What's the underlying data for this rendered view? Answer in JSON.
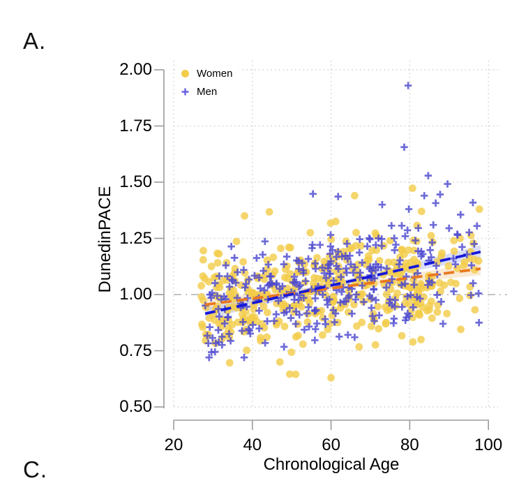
{
  "panel_labels": {
    "top": "A.",
    "bottom": "C."
  },
  "chart_data": {
    "type": "scatter",
    "title": "",
    "xlabel": "Chronological Age",
    "ylabel": "DunedinPACE",
    "xlim": [
      20,
      100
    ],
    "ylim": [
      0.5,
      2.0
    ],
    "x_ticks": [
      20,
      40,
      60,
      80,
      100
    ],
    "x_tick_labels": [
      "20",
      "40",
      "60",
      "80",
      "100"
    ],
    "y_ticks": [
      2.0,
      1.75,
      1.5,
      1.25,
      1.0,
      0.75,
      0.5
    ],
    "y_tick_labels": [
      "2.00",
      "1.75",
      "1.50",
      "1.25",
      "1.00",
      "0.75",
      "0.50"
    ],
    "grid": "dotted",
    "grid_color": "#d0d0d0",
    "axis_color": "#9b9b9b",
    "reference_line": {
      "y": 1.0,
      "style": "dash-dot",
      "color": "#c4c4c4"
    },
    "legend": {
      "position": "top-left-inside",
      "entries": [
        {
          "label": "Women",
          "marker": "circle",
          "color": "#F3CC49"
        },
        {
          "label": "Men",
          "marker": "plus",
          "color": "#6660DE"
        }
      ]
    },
    "series": [
      {
        "name": "Women",
        "marker": "circle",
        "color": "#F3CC49",
        "opacity": 0.8,
        "approx_n": 400,
        "trend": {
          "style": "dashed",
          "color": "#E8791F",
          "x": [
            28,
            98
          ],
          "y": [
            0.955,
            1.115
          ],
          "band_color": "#F6DCB6",
          "band_opacity": 0.6
        },
        "distribution": {
          "seed": 11,
          "n": 400,
          "age_min": 27,
          "age_bulk_max": 86,
          "age_max": 97,
          "pace_at_min": 0.953,
          "slope_per_year": 0.00229,
          "sd": 0.112,
          "pace_floor": 0.655,
          "pace_ceil": 1.4
        },
        "outliers": [
          [
            80.7,
            1.473
          ],
          [
            66,
            1.44
          ],
          [
            44.3,
            1.368
          ],
          [
            38,
            1.35
          ],
          [
            49.5,
            0.646
          ],
          [
            51,
            0.645
          ],
          [
            60,
            0.63
          ],
          [
            47,
            0.7
          ],
          [
            83,
            1.37
          ],
          [
            97.7,
            1.38
          ],
          [
            95.5,
            1.19
          ],
          [
            92.8,
            1.25
          ],
          [
            96.5,
            1.11
          ],
          [
            97.5,
            1.15
          ],
          [
            88,
            1.17
          ],
          [
            85.5,
            0.97
          ]
        ]
      },
      {
        "name": "Men",
        "marker": "plus",
        "color": "#4D49CF",
        "opacity": 0.82,
        "approx_n": 300,
        "trend": {
          "style": "dashed",
          "color": "#1618D8",
          "x": [
            28,
            98
          ],
          "y": [
            0.915,
            1.19
          ],
          "band_color": "#B9C2EC",
          "band_opacity": 0.55
        },
        "distribution": {
          "seed": 7,
          "n": 300,
          "age_min": 28,
          "age_bulk_max": 86,
          "age_max": 98,
          "pace_at_min": 0.912,
          "slope_per_year": 0.00393,
          "sd": 0.112,
          "pace_floor": 0.7,
          "pace_ceil": 1.46
        },
        "outliers": [
          [
            79.6,
            1.93
          ],
          [
            78.6,
            1.656
          ],
          [
            84.7,
            1.529
          ],
          [
            89.6,
            1.492
          ],
          [
            83.7,
            1.44
          ],
          [
            86.6,
            1.407
          ],
          [
            55.4,
            1.448
          ],
          [
            61.8,
            1.436
          ],
          [
            73,
            1.4
          ],
          [
            97.5,
            1.005
          ],
          [
            97.6,
            0.875
          ],
          [
            95.7,
            1.13
          ],
          [
            90,
            1.295
          ],
          [
            29,
            0.72
          ],
          [
            30.5,
            0.745
          ],
          [
            86,
            1.31
          ]
        ]
      }
    ]
  }
}
